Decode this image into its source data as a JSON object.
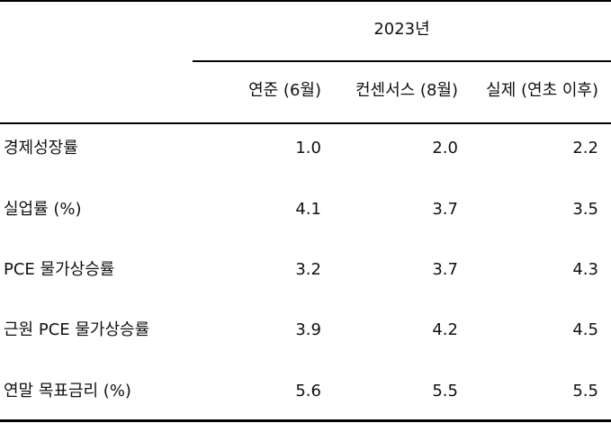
{
  "table": {
    "group_header": "2023년",
    "columns": [
      "연준 (6월)",
      "컨센서스 (8월)",
      "실제 (연초 이후)"
    ],
    "rows": [
      {
        "label": "경제성장률",
        "values": [
          "1.0",
          "2.0",
          "2.2"
        ]
      },
      {
        "label": "실업률 (%)",
        "values": [
          "4.1",
          "3.7",
          "3.5"
        ]
      },
      {
        "label": "PCE 물가상승률",
        "values": [
          "3.2",
          "3.7",
          "4.3"
        ]
      },
      {
        "label": "근원 PCE 물가상승률",
        "values": [
          "3.9",
          "4.2",
          "4.5"
        ]
      },
      {
        "label": "연말 목표금리 (%)",
        "values": [
          "5.6",
          "5.5",
          "5.5"
        ]
      }
    ]
  }
}
